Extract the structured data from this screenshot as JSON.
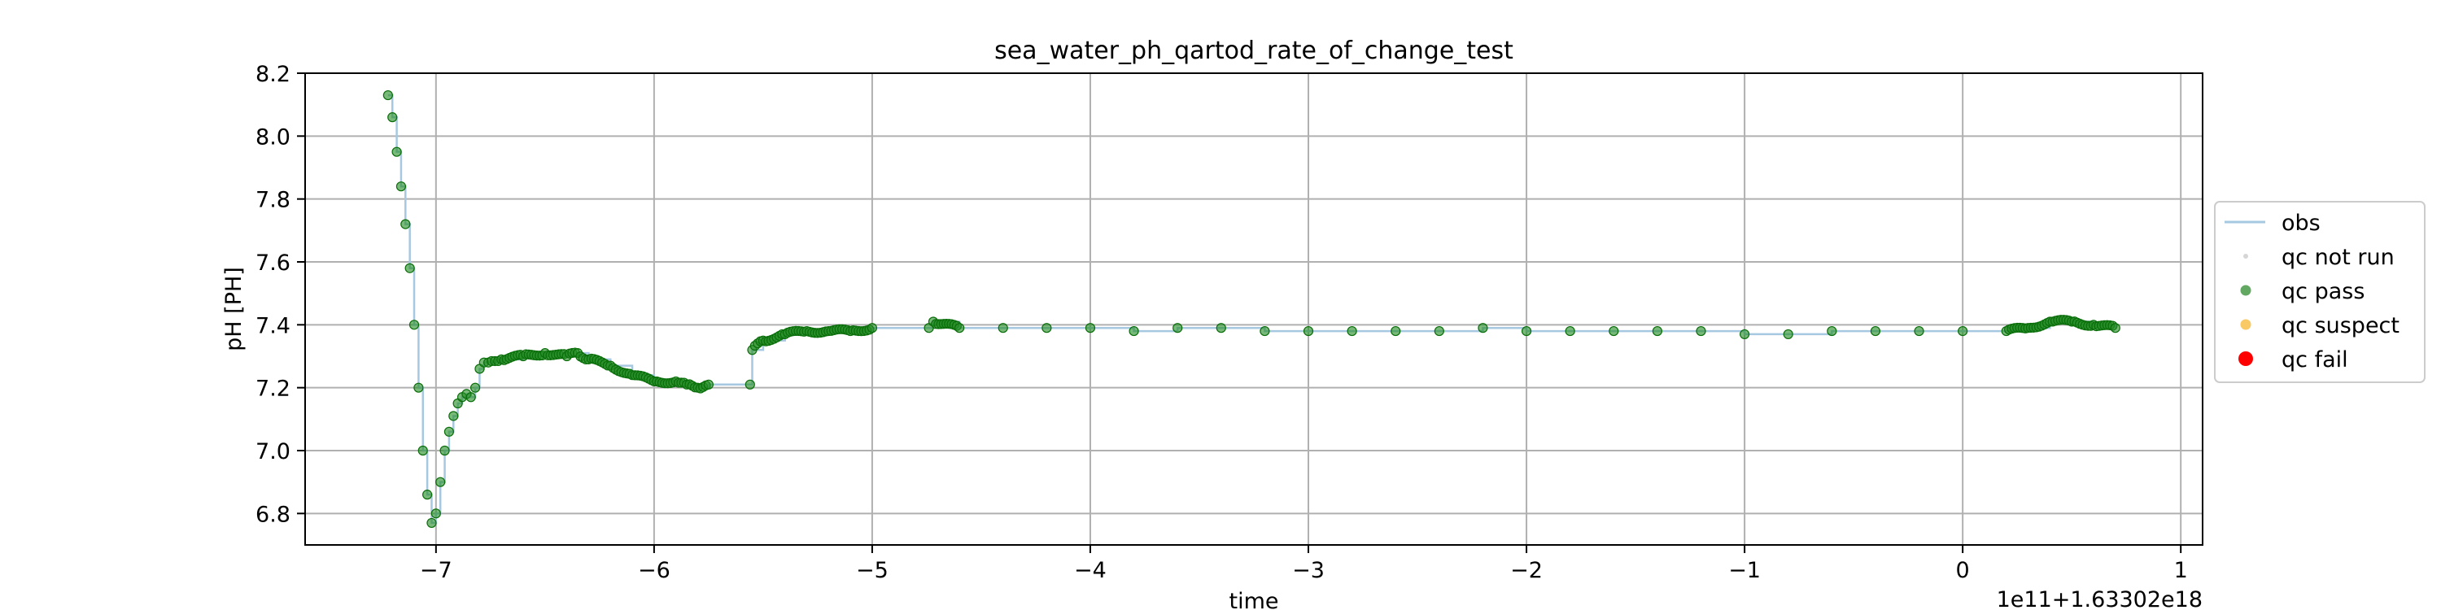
{
  "chart_data": {
    "type": "scatter",
    "title": "sea_water_ph_qartod_rate_of_change_test",
    "xlabel": "time",
    "ylabel": "pH [PH]",
    "offset_text": "1e11+1.63302e18",
    "xlim": [
      -7.6,
      1.1
    ],
    "ylim": [
      6.7,
      8.2
    ],
    "xticks": [
      -7,
      -6,
      -5,
      -4,
      -3,
      -2,
      -1,
      0,
      1
    ],
    "xtick_labels": [
      "−7",
      "−6",
      "−5",
      "−4",
      "−3",
      "−2",
      "−1",
      "0",
      "1"
    ],
    "yticks": [
      6.8,
      7.0,
      7.2,
      7.4,
      7.6,
      7.8,
      8.0,
      8.2
    ],
    "ytick_labels": [
      "6.8",
      "7.0",
      "7.2",
      "7.4",
      "7.6",
      "7.8",
      "8.0",
      "8.2"
    ],
    "grid": true,
    "legend_position": "right",
    "legend": [
      {
        "label": "obs",
        "kind": "line",
        "color": "#a6c8e0"
      },
      {
        "label": "qc not run",
        "kind": "dot-small",
        "color": "#c8c8c8"
      },
      {
        "label": "qc pass",
        "kind": "dot",
        "color": "#2e8b2e"
      },
      {
        "label": "qc suspect",
        "kind": "dot",
        "color": "#f5b731"
      },
      {
        "label": "qc fail",
        "kind": "dot-big",
        "color": "#ff0000"
      }
    ],
    "colors": {
      "pass_fill": "#1f8a1f",
      "pass_edge": "#0a6e0a",
      "obs_line": "#a6c8e0"
    },
    "series": [
      {
        "name": "qc pass",
        "x": [
          -7.22,
          -7.2,
          -7.18,
          -7.16,
          -7.14,
          -7.12,
          -7.1,
          -7.08,
          -7.06,
          -7.04,
          -7.02,
          -7.0,
          -6.98,
          -6.96,
          -6.94,
          -6.92,
          -6.9,
          -6.88,
          -6.86,
          -6.84,
          -6.82,
          -6.8,
          -6.78,
          -6.76,
          -6.7,
          -6.6,
          -6.5,
          -6.4,
          -6.35,
          -6.3,
          -6.2,
          -6.1,
          -6.0,
          -5.9,
          -5.85,
          -5.8,
          -5.75,
          -5.56,
          -5.55,
          -5.5,
          -5.4,
          -5.3,
          -5.2,
          -5.1,
          -5.0,
          -4.74,
          -4.72,
          -4.6,
          -4.4,
          -4.2,
          -4.0,
          -3.8,
          -3.6,
          -3.4,
          -3.2,
          -3.0,
          -2.8,
          -2.6,
          -2.4,
          -2.2,
          -2.0,
          -1.8,
          -1.6,
          -1.4,
          -1.2,
          -1.0,
          -0.8,
          -0.6,
          -0.4,
          -0.2,
          0.0,
          0.2,
          0.3,
          0.4,
          0.5,
          0.6,
          0.7
        ],
        "y": [
          8.13,
          8.06,
          7.95,
          7.84,
          7.72,
          7.58,
          7.4,
          7.2,
          7.0,
          6.86,
          6.77,
          6.8,
          6.9,
          7.0,
          7.06,
          7.11,
          7.15,
          7.17,
          7.18,
          7.17,
          7.2,
          7.26,
          7.28,
          7.28,
          7.29,
          7.3,
          7.31,
          7.3,
          7.31,
          7.29,
          7.27,
          7.24,
          7.22,
          7.22,
          7.21,
          7.2,
          7.21,
          7.21,
          7.32,
          7.35,
          7.37,
          7.38,
          7.38,
          7.38,
          7.39,
          7.39,
          7.41,
          7.39,
          7.39,
          7.39,
          7.39,
          7.38,
          7.39,
          7.39,
          7.38,
          7.38,
          7.38,
          7.38,
          7.38,
          7.39,
          7.38,
          7.38,
          7.38,
          7.38,
          7.38,
          7.37,
          7.37,
          7.38,
          7.38,
          7.38,
          7.38,
          7.38,
          7.39,
          7.41,
          7.41,
          7.4,
          7.39
        ]
      }
    ]
  }
}
